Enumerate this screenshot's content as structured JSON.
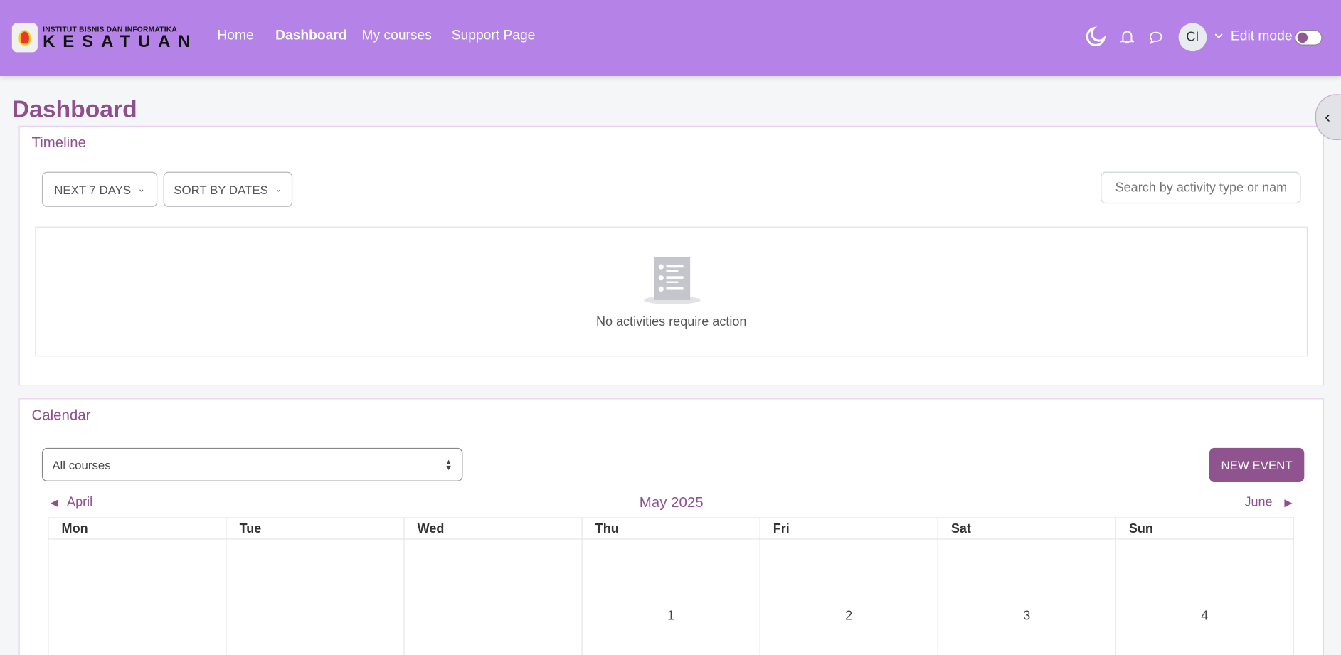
{
  "header": {
    "logo_line1": "INSTITUT BISNIS DAN INFORMATIKA",
    "logo_line2": "KESATUAN",
    "nav": [
      "Home",
      "Dashboard",
      "My courses",
      "Support Page"
    ],
    "active_nav": "Dashboard",
    "avatar_initials": "CI",
    "edit_mode_label": "Edit mode",
    "edit_mode_on": false,
    "icons": [
      "moon-icon",
      "bell-icon",
      "chat-icon",
      "chevron-down-icon"
    ]
  },
  "page": {
    "title": "Dashboard"
  },
  "timeline": {
    "title": "Timeline",
    "filter_label": "NEXT 7 DAYS",
    "sort_label": "SORT BY DATES",
    "search_placeholder": "Search by activity type or name",
    "empty_text": "No activities require action"
  },
  "calendar": {
    "title": "Calendar",
    "course_select": "All courses",
    "new_event_label": "NEW EVENT",
    "prev_month": "April",
    "current_month": "May 2025",
    "next_month": "June",
    "weekdays": [
      "Mon",
      "Tue",
      "Wed",
      "Thu",
      "Fri",
      "Sat",
      "Sun"
    ],
    "first_week": [
      "",
      "",
      "",
      "1",
      "2",
      "3",
      "4"
    ]
  },
  "colors": {
    "header_bg": "#b583e7",
    "accent": "#8f5490",
    "page_bg": "#f5f6f8"
  }
}
